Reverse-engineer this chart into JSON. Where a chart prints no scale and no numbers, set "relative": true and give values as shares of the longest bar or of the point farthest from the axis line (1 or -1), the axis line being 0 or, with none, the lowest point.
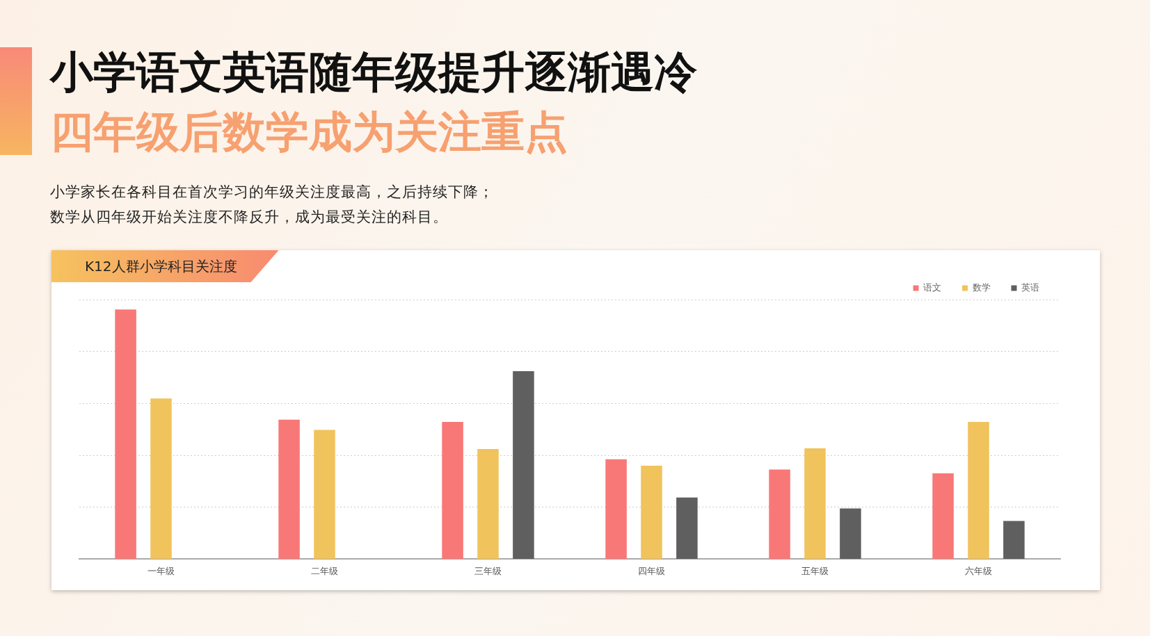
{
  "chart_data": {
    "type": "bar",
    "title": "小学语文英语随年级提升逐渐遇冷",
    "subtitle": "四年级后数学成为关注重点",
    "annotations": [
      "小学家长在各科目在首次学习的年级关注度最高，之后持续下降；",
      "数学从四年级开始关注度不降反升，成为最受关注的科目。",
      "K12人群小学科目关注度"
    ],
    "categories": [
      "一年级",
      "二年级",
      "三年级",
      "四年级",
      "五年级",
      "六年级"
    ],
    "relative": true,
    "grid": "y",
    "legend": "top right",
    "series": [
      {
        "name": "语文",
        "color": "#f87878",
        "values": [
          1,
          0.559,
          0.55,
          0.4,
          0.359,
          0.344
        ]
      },
      {
        "name": "数学",
        "color": "#f0c35c",
        "values": [
          0.644,
          0.518,
          0.441,
          0.374,
          0.444,
          0.55
        ]
      },
      {
        "name": "英语",
        "color": "#5f5f5f",
        "values": [
          null,
          null,
          0.753,
          0.247,
          0.203,
          0.153
        ]
      }
    ]
  }
}
